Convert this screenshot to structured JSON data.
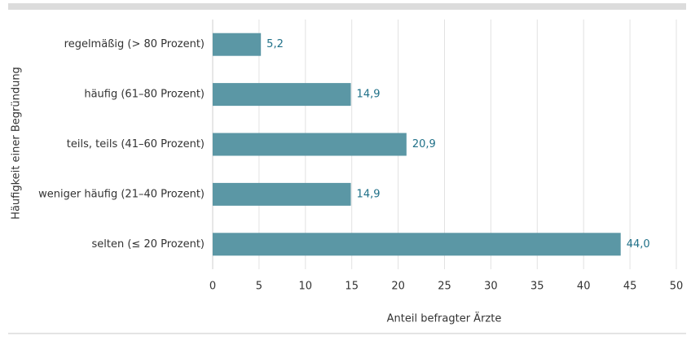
{
  "chart_data": {
    "type": "bar",
    "orientation": "horizontal",
    "categories": [
      "regelmäßig (> 80 Prozent)",
      "häufig (61–80 Prozent)",
      "teils, teils (41–60 Prozent)",
      "weniger häufig (21–40 Prozent)",
      "selten (≤ 20 Prozent)"
    ],
    "values": [
      5.2,
      14.9,
      20.9,
      14.9,
      44.0
    ],
    "value_labels": [
      "5,2",
      "14,9",
      "20,9",
      "14,9",
      "44,0"
    ],
    "color": "#5b97a5",
    "xlabel": "Anteil befragter Ärzte",
    "ylabel": "Häufigkeit einer Begründung",
    "xlim": [
      0,
      50
    ],
    "xticks": [
      0,
      5,
      10,
      15,
      20,
      25,
      30,
      35,
      40,
      45,
      50
    ],
    "grid": true
  }
}
